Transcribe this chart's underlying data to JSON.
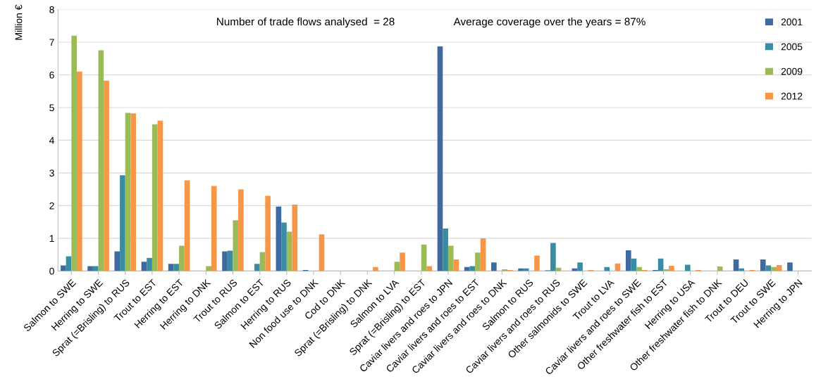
{
  "chart_data": {
    "type": "bar",
    "ylabel": "Million €",
    "annotations": [
      "Number of trade flows analysed  = 28",
      "Average coverage over the years = 87%"
    ],
    "categories": [
      "Salmon to SWE",
      "Herring to SWE",
      "Sprat (=Brisling) to RUS",
      "Trout to EST",
      "Herring to EST",
      "Herring to DNK",
      "Trout to RUS",
      "Salmon to EST",
      "Herring to RUS",
      "Non food use to DNK",
      "Cod to DNK",
      "Sprat (=Brisling) to DNK",
      "Salmon to LVA",
      "Sprat (=Brisling) to EST",
      "Caviar livers and roes to JPN",
      "Caviar livers and roes to EST",
      "Caviar livers and roes to DNK",
      "Salmon to RUS",
      "Caviar livers and roes to RUS",
      "Other salmonids to SWE",
      "Trout to LVA",
      "Caviar livers and roes to SWE",
      "Other freshwater fish to EST",
      "Herring to USA",
      "Other freshwater fish to DNK",
      "Trout to DEU",
      "Trout to SWE",
      "Herring to JPN"
    ],
    "series": [
      {
        "name": "2001",
        "color": "#3f6aa0",
        "values": [
          0.17,
          0.15,
          0.6,
          0.28,
          0.22,
          0,
          0.6,
          0,
          1.97,
          0.03,
          0,
          0,
          0,
          0,
          6.87,
          0.12,
          0.26,
          0.08,
          0.02,
          0.08,
          0,
          0.63,
          0.03,
          0,
          0,
          0.35,
          0.35,
          0.26
        ]
      },
      {
        "name": "2005",
        "color": "#3a8ca3",
        "values": [
          0.45,
          0.15,
          2.93,
          0.4,
          0.22,
          0,
          0.62,
          0.22,
          1.48,
          0,
          0,
          0,
          0,
          0,
          1.3,
          0.15,
          0,
          0.08,
          0.86,
          0.26,
          0.12,
          0.38,
          0.38,
          0.19,
          0,
          0.08,
          0.17,
          0
        ]
      },
      {
        "name": "2009",
        "color": "#9bbb59",
        "values": [
          7.2,
          6.75,
          4.84,
          4.49,
          0.77,
          0.15,
          1.55,
          0.58,
          1.2,
          0,
          0,
          0,
          0.28,
          0.81,
          0.77,
          0.56,
          0.05,
          0,
          0.1,
          0,
          0,
          0.12,
          0.05,
          0,
          0.14,
          0,
          0.12,
          0
        ]
      },
      {
        "name": "2012",
        "color": "#f79646",
        "values": [
          6.1,
          5.82,
          4.82,
          4.6,
          2.77,
          2.6,
          2.5,
          2.3,
          2.03,
          1.12,
          0,
          0.12,
          0.56,
          0.15,
          0.35,
          1.0,
          0.03,
          0.47,
          0,
          0.03,
          0.23,
          0.03,
          0.16,
          0.03,
          0,
          0.03,
          0.18,
          0
        ]
      }
    ],
    "ylim": [
      0,
      8
    ],
    "yticks": [
      0,
      1,
      2,
      3,
      4,
      5,
      6,
      7,
      8
    ],
    "grid": "y",
    "legend": "top right"
  }
}
